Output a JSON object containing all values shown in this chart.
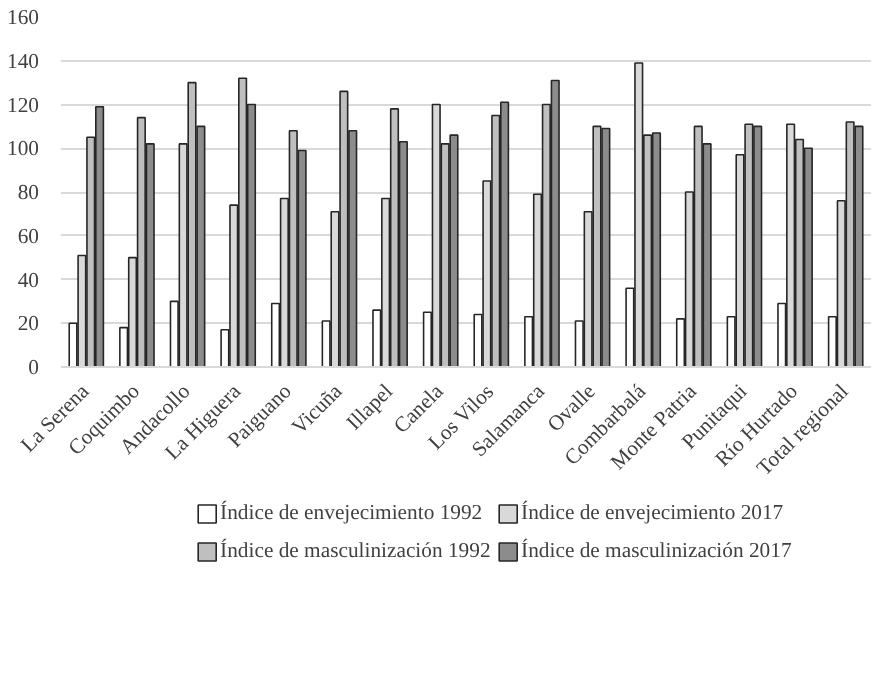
{
  "chart_data": {
    "type": "bar",
    "categories": [
      "La Serena",
      "Coquimbo",
      "Andacollo",
      "La Higuera",
      "Paiguano",
      "Vicuña",
      "Illapel",
      "Canela",
      "Los Vilos",
      "Salamanca",
      "Ovalle",
      "Combarbalá",
      "Monte Patria",
      "Punitaqui",
      "Río Hurtado",
      "Total regional"
    ],
    "series": [
      {
        "name": "Índice de envejecimiento 1992",
        "color": "#ffffff",
        "values": [
          20,
          18,
          30,
          17,
          29,
          21,
          26,
          25,
          24,
          23,
          21,
          36,
          22,
          23,
          29,
          23
        ]
      },
      {
        "name": "Índice de envejecimiento 2017",
        "color": "#d9d9d9",
        "values": [
          51,
          50,
          102,
          74,
          77,
          71,
          77,
          120,
          85,
          79,
          71,
          139,
          80,
          97,
          111,
          76
        ]
      },
      {
        "name": "Índice de masculinización 1992",
        "color": "#bfbfbf",
        "values": [
          105,
          114,
          130,
          132,
          108,
          126,
          118,
          102,
          115,
          120,
          110,
          106,
          110,
          111,
          104,
          112
        ]
      },
      {
        "name": "Índice de masculinización 2017",
        "color": "#8c8c8c",
        "values": [
          119,
          102,
          110,
          120,
          99,
          108,
          103,
          106,
          121,
          131,
          109,
          107,
          102,
          110,
          100,
          110
        ]
      }
    ],
    "ylim": [
      0,
      160
    ],
    "yticks": [
      0,
      20,
      40,
      60,
      80,
      100,
      120,
      140,
      160
    ],
    "grid": "y",
    "legend": "bottom"
  }
}
